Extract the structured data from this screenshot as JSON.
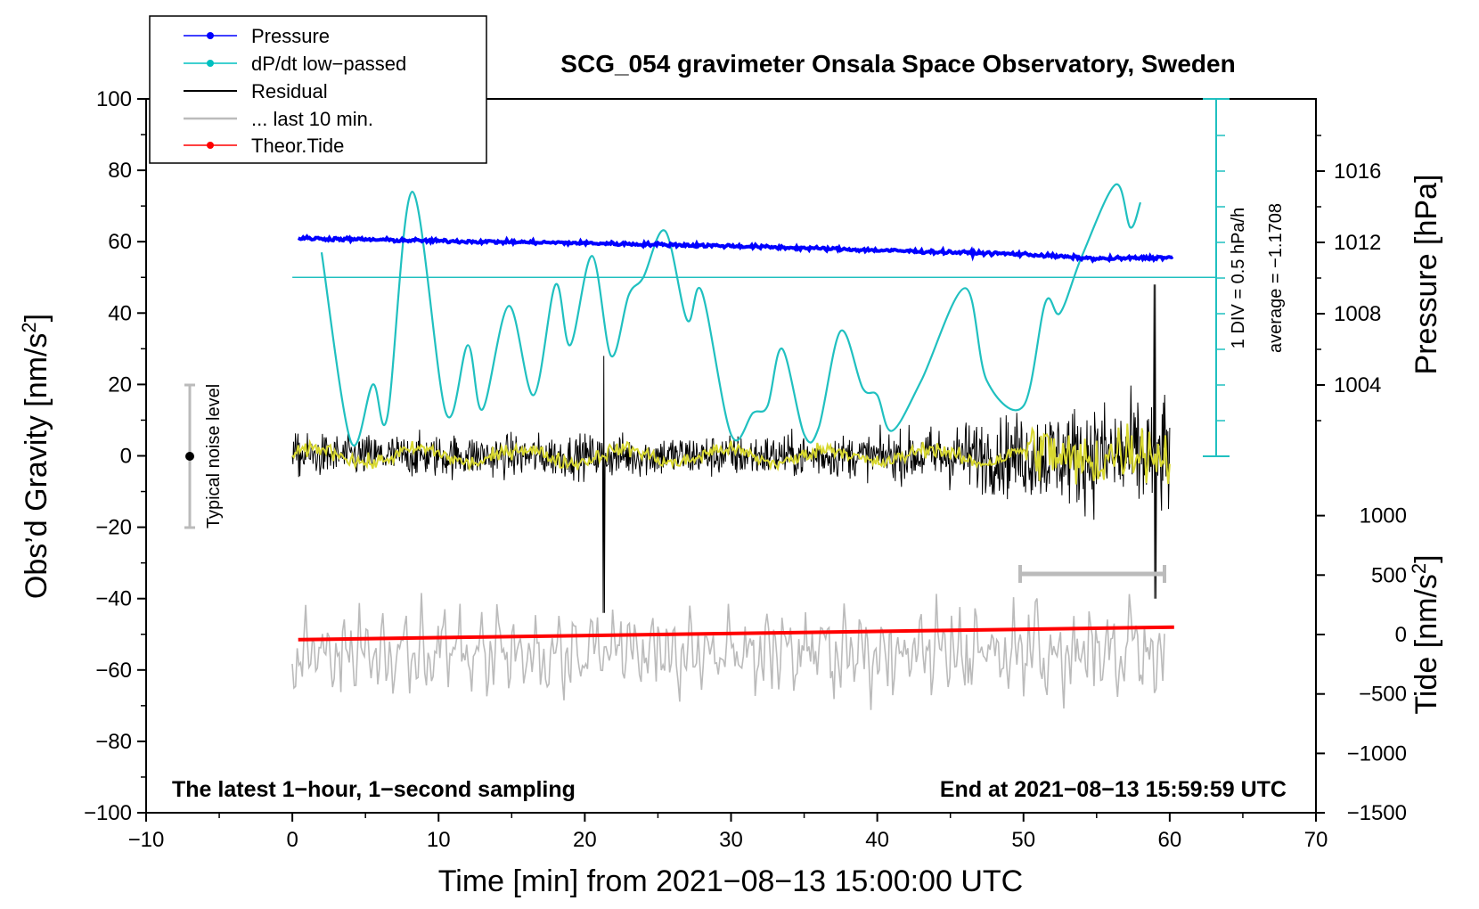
{
  "chart_data": {
    "type": "line",
    "title": "SCG_054 gravimeter Onsala Space Observatory, Sweden",
    "xlabel": "Time [min] from 2021−08−13 15:00:00 UTC",
    "ylabel_left": "Obs’d Gravity [nm/s",
    "ylabel_left_sup": "2",
    "ylabel_left_end": "]",
    "ylabel_right_top": "Pressure [hPa]",
    "ylabel_right_bottom": "Tide [nm/s",
    "ylabel_right_bottom_sup": "2",
    "ylabel_right_bottom_end": "]",
    "xlim": [
      -10,
      70
    ],
    "ylim": [
      -100,
      100
    ],
    "xticks": [
      "−10",
      "0",
      "10",
      "20",
      "30",
      "40",
      "50",
      "60",
      "70"
    ],
    "yticks": [
      "−100",
      "−80",
      "−60",
      "−40",
      "−20",
      "0",
      "20",
      "40",
      "60",
      "80",
      "100"
    ],
    "pressure_ticks": [
      "1004",
      "1008",
      "1012",
      "1016"
    ],
    "tide_ticks": [
      "−1500",
      "−1000",
      "−500",
      "0",
      "500",
      "1000"
    ],
    "legend": [
      {
        "label": "Pressure",
        "color": "#0000ff"
      },
      {
        "label": "dP/dt low−passed",
        "color": "#00c0c0"
      },
      {
        "label": "Residual",
        "color": "#000000"
      },
      {
        "label": "... last 10 min.",
        "color": "#bbbbbb"
      },
      {
        "label": "Theor.Tide",
        "color": "#ff0000"
      }
    ],
    "annotations": {
      "noise": "Typical noise level",
      "div": "1 DIV = 0.5 hPa/h",
      "average": "average = −1.1708",
      "bottom_left": "The latest 1−hour, 1−second sampling",
      "bottom_right": "End at 2021−08−13 15:59:59 UTC"
    },
    "series": [
      {
        "name": "Pressure",
        "color": "#0000ff",
        "x": [
          0,
          10,
          20,
          30,
          40,
          50,
          55,
          60
        ],
        "y": [
          61,
          60.2,
          59.6,
          58.8,
          57.6,
          56.5,
          55.2,
          55.6
        ]
      },
      {
        "name": "dP/dt low−passed",
        "color": "#20c0c0",
        "x": [
          2,
          4,
          5.5,
          6.5,
          8.2,
          10.5,
          12,
          13,
          14.8,
          16.5,
          18,
          19,
          20.5,
          21.8,
          23,
          24,
          25.5,
          27,
          28,
          30,
          31.5,
          32.5,
          33.5,
          35,
          36,
          37.5,
          39,
          40,
          41,
          43,
          46,
          47.5,
          50,
          51.5,
          52.5,
          54,
          56.3,
          57.3,
          58
        ],
        "y": [
          57,
          4,
          20,
          11,
          74,
          12,
          31,
          13,
          42,
          17,
          48,
          31,
          56,
          28,
          45,
          50,
          63,
          38,
          46,
          6,
          12,
          14,
          30,
          6,
          8,
          35,
          19,
          17,
          7,
          21,
          47,
          21,
          14,
          43,
          40,
          56,
          76,
          64,
          71
        ]
      },
      {
        "name": "Theor.Tide",
        "color": "#ff0000",
        "x": [
          0,
          60
        ],
        "y": [
          -51.5,
          -48
        ]
      }
    ]
  }
}
